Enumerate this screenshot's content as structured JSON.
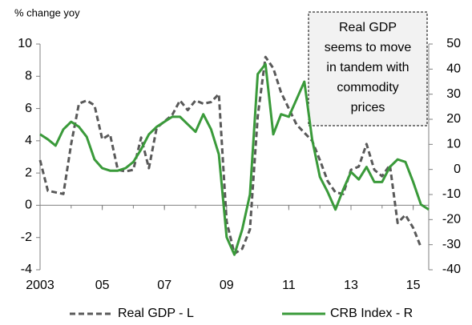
{
  "chart_data": {
    "type": "line",
    "ylabel": "% change yoy",
    "annotation": [
      "Real GDP",
      "seems to move",
      "in tandem with",
      "commodity",
      "prices"
    ],
    "xlim": [
      2003,
      2015.5
    ],
    "xticks": [
      2003,
      {
        "value": 2005,
        "label": "05"
      },
      {
        "value": 2007,
        "label": "07"
      },
      {
        "value": 2009,
        "label": "09"
      },
      {
        "value": 2011,
        "label": "11"
      },
      {
        "value": 2013,
        "label": "13"
      },
      {
        "value": 2015,
        "label": "15"
      }
    ],
    "ylim": [
      -4,
      10
    ],
    "yticks": [
      -4,
      -2,
      0,
      2,
      4,
      6,
      8,
      10
    ],
    "y2lim": [
      -40,
      50
    ],
    "y2ticks": [
      -40,
      -30,
      -20,
      -10,
      0,
      10,
      20,
      30,
      40,
      50
    ],
    "series": [
      {
        "name": "Real GDP - L",
        "color": "#595959",
        "dashed": true,
        "axis": "y",
        "x": [
          2003,
          2003.25,
          2003.5,
          2003.75,
          2004,
          2004.25,
          2004.5,
          2004.75,
          2005,
          2005.25,
          2005.5,
          2005.75,
          2006,
          2006.25,
          2006.5,
          2006.75,
          2007,
          2007.25,
          2007.5,
          2007.75,
          2008,
          2008.25,
          2008.5,
          2008.75,
          2009,
          2009.25,
          2009.5,
          2009.75,
          2010,
          2010.25,
          2010.5,
          2010.75,
          2011,
          2011.25,
          2011.5,
          2011.75,
          2012,
          2012.25,
          2012.5,
          2012.75,
          2013,
          2013.25,
          2013.5,
          2013.75,
          2014,
          2014.25,
          2014.5,
          2014.75,
          2015,
          2015.25
        ],
        "values": [
          2.8,
          0.9,
          0.8,
          0.7,
          3.8,
          6.3,
          6.5,
          6.2,
          4.1,
          4.4,
          2.2,
          2.1,
          2.2,
          4.2,
          2.3,
          4.8,
          5.2,
          5.6,
          6.5,
          5.9,
          6.5,
          6.3,
          6.4,
          6.9,
          -1.0,
          -3.0,
          -2.7,
          -1.5,
          5.5,
          9.2,
          8.5,
          7.0,
          6.0,
          5.0,
          4.5,
          4.0,
          2.8,
          1.5,
          0.8,
          0.7,
          2.2,
          2.4,
          3.8,
          2.2,
          1.8,
          2.5,
          -1.1,
          -0.6,
          -1.4,
          -2.6
        ]
      },
      {
        "name": "CRB Index - R",
        "color": "#3a9a3a",
        "dashed": false,
        "axis": "y2",
        "x": [
          2003,
          2003.25,
          2003.5,
          2003.75,
          2004,
          2004.25,
          2004.5,
          2004.75,
          2005,
          2005.25,
          2005.5,
          2005.75,
          2006,
          2006.25,
          2006.5,
          2006.75,
          2007,
          2007.25,
          2007.5,
          2007.75,
          2008,
          2008.25,
          2008.5,
          2008.75,
          2009,
          2009.25,
          2009.5,
          2009.75,
          2010,
          2010.25,
          2010.5,
          2010.75,
          2011,
          2011.25,
          2011.5,
          2011.75,
          2012,
          2012.25,
          2012.5,
          2012.75,
          2013,
          2013.25,
          2013.5,
          2013.75,
          2014,
          2014.25,
          2014.5,
          2014.75,
          2015,
          2015.25,
          2015.5
        ],
        "values": [
          14,
          12,
          9.5,
          16,
          19,
          17,
          13,
          4,
          0.5,
          -0.5,
          -0.5,
          0.5,
          3,
          8,
          14,
          17,
          19,
          21,
          21,
          18,
          15,
          22,
          16,
          6,
          -27,
          -34,
          -24,
          -10,
          38,
          42,
          14,
          22,
          21,
          28,
          35,
          12,
          -3,
          -9,
          -16,
          -8,
          -1,
          -4,
          1,
          -5,
          -5,
          1,
          4,
          3,
          -5,
          -14,
          -16
        ]
      }
    ]
  }
}
